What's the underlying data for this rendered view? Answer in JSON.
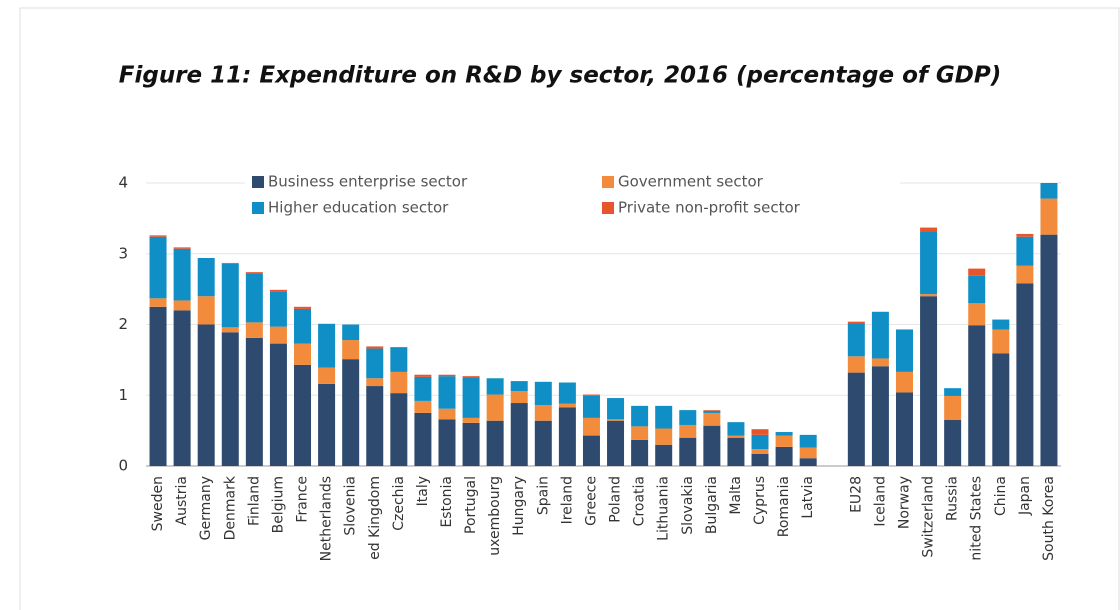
{
  "chart_data": {
    "type": "stacked_bar",
    "title": "Figure 11:  Expenditure on R&D by sector, 2016 (percentage of GDP)",
    "categories": [
      "Sweden",
      "Austria",
      "Germany",
      "Denmark",
      "Finland",
      "Belgium",
      "France",
      "Netherlands",
      "Slovenia",
      "ed Kingdom",
      "Czechia",
      "Italy",
      "Estonia",
      "Portugal",
      "uxembourg",
      "Hungary",
      "Spain",
      "Ireland",
      "Greece",
      "Poland",
      "Croatia",
      "Lithuania",
      "Slovakia",
      "Bulgaria",
      "Malta",
      "Cyprus",
      "Romania",
      "Latvia",
      null,
      "EU28",
      "Iceland",
      "Norway",
      "Switzerland",
      "Russia",
      "nited States",
      "China",
      "Japan",
      "South Korea"
    ],
    "series": [
      {
        "name": "Business enterprise sector",
        "color": "#2e4a6e",
        "values": [
          2.25,
          2.2,
          2.0,
          1.89,
          1.81,
          1.73,
          1.43,
          1.16,
          1.51,
          1.13,
          1.03,
          0.75,
          0.66,
          0.61,
          0.64,
          0.89,
          0.64,
          0.83,
          0.43,
          0.64,
          0.37,
          0.3,
          0.4,
          0.57,
          0.4,
          0.17,
          0.27,
          0.11,
          null,
          1.32,
          1.41,
          1.04,
          2.4,
          0.65,
          1.99,
          1.59,
          2.58,
          3.27
        ]
      },
      {
        "name": "Government sector",
        "color": "#f28c3c",
        "values": [
          0.12,
          0.14,
          0.4,
          0.07,
          0.22,
          0.24,
          0.3,
          0.23,
          0.27,
          0.11,
          0.3,
          0.17,
          0.15,
          0.07,
          0.37,
          0.17,
          0.22,
          0.05,
          0.25,
          0.02,
          0.19,
          0.23,
          0.18,
          0.18,
          0.03,
          0.07,
          0.16,
          0.15,
          null,
          0.23,
          0.11,
          0.29,
          0.03,
          0.34,
          0.31,
          0.34,
          0.25,
          0.51
        ]
      },
      {
        "name": "Higher education sector",
        "color": "#0f8fc6",
        "values": [
          0.87,
          0.73,
          0.54,
          0.9,
          0.69,
          0.5,
          0.49,
          0.62,
          0.22,
          0.42,
          0.35,
          0.34,
          0.46,
          0.57,
          0.23,
          0.14,
          0.33,
          0.3,
          0.32,
          0.3,
          0.29,
          0.32,
          0.21,
          0.03,
          0.19,
          0.2,
          0.05,
          0.18,
          null,
          0.47,
          0.66,
          0.6,
          0.89,
          0.11,
          0.39,
          0.14,
          0.41,
          0.22
        ]
      },
      {
        "name": "Private non-profit sector",
        "color": "#e8552b",
        "values": [
          0.02,
          0.02,
          0,
          0.01,
          0.02,
          0.02,
          0.03,
          0,
          0,
          0.03,
          0,
          0.03,
          0.02,
          0.02,
          0,
          0,
          0,
          0,
          0.01,
          0,
          0,
          0,
          0,
          0.01,
          0,
          0.08,
          0,
          0,
          null,
          0.02,
          0,
          0,
          0.05,
          0,
          0.1,
          0,
          0.04,
          0
        ]
      }
    ],
    "ylim": [
      0,
      4
    ],
    "yticks": [
      0,
      1,
      2,
      3,
      4
    ],
    "grid": true,
    "legend": "top"
  }
}
